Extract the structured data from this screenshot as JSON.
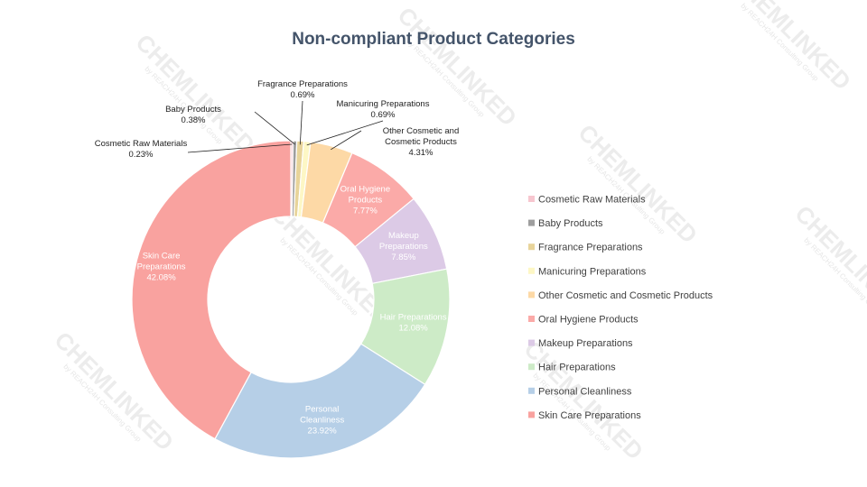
{
  "watermark": {
    "brand": "CHEMLINKED",
    "sub": "by REACH24H Consulting Group"
  },
  "chart_data": {
    "type": "pie",
    "donut": true,
    "title": "Non-compliant Product Categories",
    "legend_position": "right",
    "slices": [
      {
        "label": "Cosmetic Raw Materials",
        "value": 0.23,
        "value_text": "0.23%",
        "color": "#f7c6cf",
        "label_lines": [
          "Cosmetic Raw Materials"
        ]
      },
      {
        "label": "Baby Products",
        "value": 0.38,
        "value_text": "0.38%",
        "color": "#9e9e9e",
        "label_lines": [
          "Baby Products"
        ]
      },
      {
        "label": "Fragrance Preparations",
        "value": 0.69,
        "value_text": "0.69%",
        "color": "#e8d49a",
        "label_lines": [
          "Fragrance Preparations"
        ]
      },
      {
        "label": "Manicuring Preparations",
        "value": 0.69,
        "value_text": "0.69%",
        "color": "#fdf7c5",
        "label_lines": [
          "Manicuring Preparations"
        ]
      },
      {
        "label": "Other Cosmetic and Cosmetic Products",
        "value": 4.31,
        "value_text": "4.31%",
        "color": "#fdd9a6",
        "label_lines": [
          "Other Cosmetic and",
          "Cosmetic Products"
        ]
      },
      {
        "label": "Oral Hygiene Products",
        "value": 7.77,
        "value_text": "7.77%",
        "color": "#fbaaa8",
        "label_lines": [
          "Oral Hygiene",
          "Products"
        ]
      },
      {
        "label": "Makeup Preparations",
        "value": 7.85,
        "value_text": "7.85%",
        "color": "#dccae6",
        "label_lines": [
          "Makeup",
          "Preparations"
        ]
      },
      {
        "label": "Hair Preparations",
        "value": 12.08,
        "value_text": "12.08%",
        "color": "#cdebc7",
        "label_lines": [
          "Hair Preparations"
        ]
      },
      {
        "label": "Personal Cleanliness",
        "value": 23.92,
        "value_text": "23.92%",
        "color": "#b6cfe7",
        "label_lines": [
          "Personal",
          "Cleanliness"
        ]
      },
      {
        "label": "Skin Care Preparations",
        "value": 42.08,
        "value_text": "42.08%",
        "color": "#f9a29f",
        "label_lines": [
          "Skin Care",
          "Preparations"
        ]
      }
    ]
  }
}
